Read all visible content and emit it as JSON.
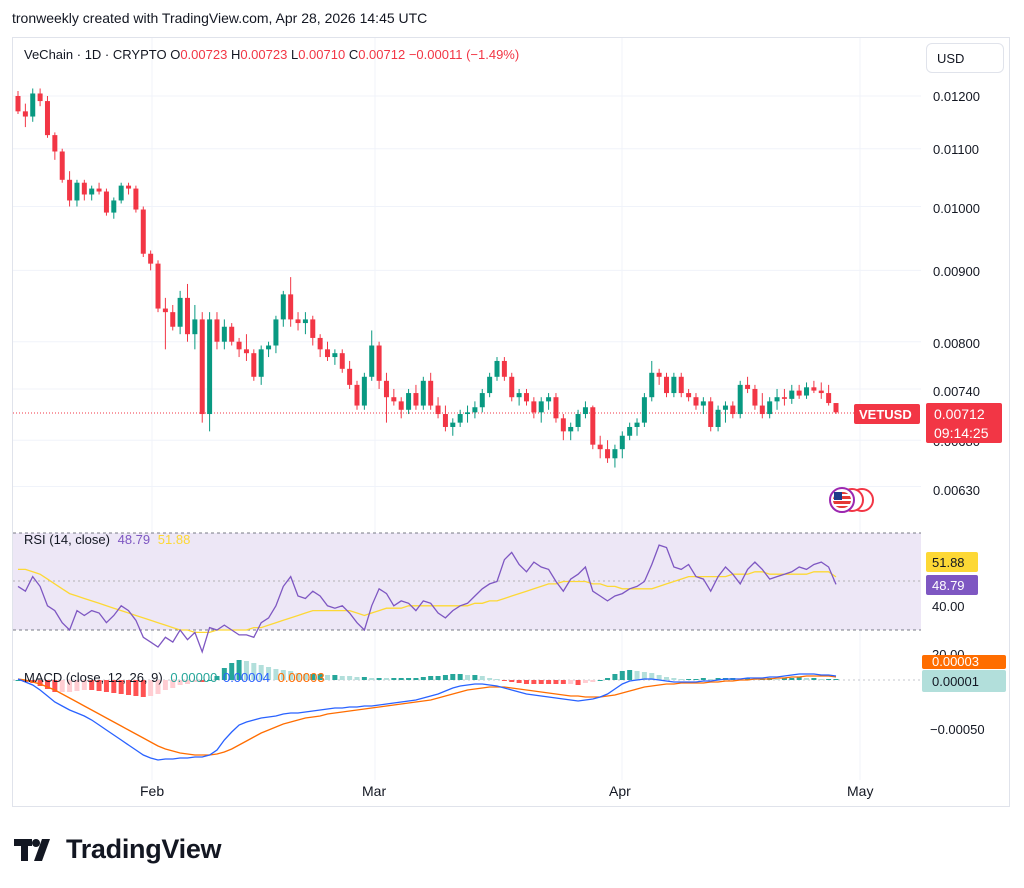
{
  "header": {
    "credit": "tronweekly created with TradingView.com, Apr 28, 2026 14:45 UTC"
  },
  "symbol": {
    "name": "VeChain · 1D · CRYPTO",
    "o_label": "O",
    "o": "0.00723",
    "h_label": "H",
    "h": "0.00723",
    "l_label": "L",
    "l": "0.00710",
    "c_label": "C",
    "c": "0.00712",
    "change": "−0.00011 (−1.49%)"
  },
  "currency_button": "USD",
  "price_axis": {
    "ticks": [
      "0.01200",
      "0.01100",
      "0.01000",
      "0.00900",
      "0.00800",
      "0.00740",
      "0.00630"
    ],
    "ticker_tag": "VETUSD",
    "last_price": "0.00712",
    "countdown": "09:14:25",
    "hidden_tick": "0.00680"
  },
  "rsi": {
    "label": "RSI (14, close)",
    "value": "48.79",
    "ma_value": "51.88",
    "axis_ticks": [
      "40.00",
      "20.00"
    ]
  },
  "macd": {
    "label": "MACD (close, 12, 26, 9)",
    "hist_value": "0.00000",
    "macd_value": "0.00004",
    "signal_value": "0.00003",
    "axis_badge_signal": "0.00003",
    "axis_badge_value": "0.00001",
    "axis_ticks": [
      "−0.00050"
    ]
  },
  "time_axis": {
    "labels": [
      "Feb",
      "Mar",
      "Apr",
      "May"
    ]
  },
  "logo": {
    "text": "TradingView"
  },
  "colors": {
    "up": "#089981",
    "down": "#f23645",
    "rsi": "#7e57c2",
    "rsi_ma": "#fdd835",
    "macd": "#2962ff",
    "signal": "#ff6d00",
    "rsi_band": "#ede7f6"
  },
  "chart_data": {
    "type": "candlestick",
    "title": "VeChain · 1D · CRYPTO",
    "x_dates": [
      "2026-01-03",
      "2026-04-28"
    ],
    "ylim": [
      0.006,
      0.0122
    ],
    "y_scale": "log",
    "grid": true,
    "candles": [
      [
        0.012,
        0.0121,
        0.01165,
        0.0117
      ],
      [
        0.0117,
        0.01185,
        0.0114,
        0.0116
      ],
      [
        0.0116,
        0.01215,
        0.0115,
        0.01205
      ],
      [
        0.01205,
        0.01215,
        0.0118,
        0.0119
      ],
      [
        0.0119,
        0.012,
        0.0112,
        0.01125
      ],
      [
        0.01125,
        0.0113,
        0.0108,
        0.01095
      ],
      [
        0.01095,
        0.011,
        0.0104,
        0.01045
      ],
      [
        0.01045,
        0.0106,
        0.01,
        0.0101
      ],
      [
        0.0101,
        0.01045,
        0.01,
        0.0104
      ],
      [
        0.0104,
        0.01045,
        0.0101,
        0.0102
      ],
      [
        0.0102,
        0.01035,
        0.0101,
        0.0103
      ],
      [
        0.0103,
        0.0104,
        0.0102,
        0.01025
      ],
      [
        0.01025,
        0.0103,
        0.00985,
        0.0099
      ],
      [
        0.0099,
        0.01015,
        0.0098,
        0.0101
      ],
      [
        0.0101,
        0.0104,
        0.01005,
        0.01035
      ],
      [
        0.01035,
        0.0104,
        0.0102,
        0.0103
      ],
      [
        0.0103,
        0.01035,
        0.0099,
        0.00995
      ],
      [
        0.00995,
        0.01,
        0.0092,
        0.00925
      ],
      [
        0.00925,
        0.0093,
        0.009,
        0.0091
      ],
      [
        0.0091,
        0.00915,
        0.0084,
        0.00845
      ],
      [
        0.00845,
        0.0086,
        0.0079,
        0.0084
      ],
      [
        0.0084,
        0.0085,
        0.00815,
        0.0082
      ],
      [
        0.0082,
        0.0087,
        0.0081,
        0.0086
      ],
      [
        0.0086,
        0.0088,
        0.008,
        0.0081
      ],
      [
        0.0081,
        0.0085,
        0.0079,
        0.0083
      ],
      [
        0.0083,
        0.0084,
        0.007,
        0.0071
      ],
      [
        0.0071,
        0.0084,
        0.0069,
        0.0083
      ],
      [
        0.0083,
        0.0084,
        0.0079,
        0.008
      ],
      [
        0.008,
        0.0083,
        0.0079,
        0.0082
      ],
      [
        0.0082,
        0.00825,
        0.00795,
        0.008
      ],
      [
        0.008,
        0.00805,
        0.0078,
        0.0079
      ],
      [
        0.0079,
        0.0081,
        0.00775,
        0.00785
      ],
      [
        0.00785,
        0.0079,
        0.0075,
        0.00755
      ],
      [
        0.00755,
        0.00795,
        0.00745,
        0.0079
      ],
      [
        0.0079,
        0.008,
        0.0078,
        0.00795
      ],
      [
        0.00795,
        0.00835,
        0.00785,
        0.0083
      ],
      [
        0.0083,
        0.0087,
        0.0082,
        0.00865
      ],
      [
        0.00865,
        0.0089,
        0.0082,
        0.0083
      ],
      [
        0.0083,
        0.0084,
        0.00815,
        0.00825
      ],
      [
        0.00825,
        0.0084,
        0.0081,
        0.0083
      ],
      [
        0.0083,
        0.00835,
        0.00795,
        0.00805
      ],
      [
        0.00805,
        0.0081,
        0.0078,
        0.0079
      ],
      [
        0.0079,
        0.008,
        0.00775,
        0.0078
      ],
      [
        0.0078,
        0.0079,
        0.0077,
        0.00785
      ],
      [
        0.00785,
        0.0079,
        0.0076,
        0.00765
      ],
      [
        0.00765,
        0.00775,
        0.0074,
        0.00745
      ],
      [
        0.00745,
        0.0075,
        0.00715,
        0.0072
      ],
      [
        0.0072,
        0.0076,
        0.00715,
        0.00755
      ],
      [
        0.00755,
        0.00815,
        0.0075,
        0.00795
      ],
      [
        0.00795,
        0.008,
        0.0074,
        0.0075
      ],
      [
        0.0075,
        0.0076,
        0.007,
        0.0073
      ],
      [
        0.0073,
        0.0074,
        0.0072,
        0.00725
      ],
      [
        0.00725,
        0.0073,
        0.00705,
        0.00715
      ],
      [
        0.00715,
        0.0074,
        0.0071,
        0.00735
      ],
      [
        0.00735,
        0.00745,
        0.00715,
        0.0072
      ],
      [
        0.0072,
        0.00755,
        0.00715,
        0.0075
      ],
      [
        0.0075,
        0.0076,
        0.00715,
        0.0072
      ],
      [
        0.0072,
        0.0073,
        0.00705,
        0.0071
      ],
      [
        0.0071,
        0.0072,
        0.0069,
        0.00695
      ],
      [
        0.00695,
        0.00705,
        0.00685,
        0.007
      ],
      [
        0.007,
        0.00715,
        0.00695,
        0.0071
      ],
      [
        0.0071,
        0.0072,
        0.007,
        0.00712
      ],
      [
        0.00712,
        0.00725,
        0.00705,
        0.00718
      ],
      [
        0.00718,
        0.0074,
        0.00712,
        0.00735
      ],
      [
        0.00735,
        0.0076,
        0.0073,
        0.00755
      ],
      [
        0.00755,
        0.0078,
        0.0075,
        0.00775
      ],
      [
        0.00775,
        0.0078,
        0.0075,
        0.00755
      ],
      [
        0.00755,
        0.0076,
        0.00725,
        0.0073
      ],
      [
        0.0073,
        0.0074,
        0.0072,
        0.00735
      ],
      [
        0.00735,
        0.0074,
        0.0072,
        0.00725
      ],
      [
        0.00725,
        0.0073,
        0.00705,
        0.00712
      ],
      [
        0.00712,
        0.0073,
        0.007,
        0.00725
      ],
      [
        0.00725,
        0.00735,
        0.00715,
        0.0073
      ],
      [
        0.0073,
        0.00735,
        0.007,
        0.00705
      ],
      [
        0.00705,
        0.0071,
        0.0068,
        0.0069
      ],
      [
        0.0069,
        0.007,
        0.0068,
        0.00695
      ],
      [
        0.00695,
        0.00715,
        0.0069,
        0.0071
      ],
      [
        0.0071,
        0.00725,
        0.00705,
        0.00718
      ],
      [
        0.00718,
        0.0072,
        0.0067,
        0.00675
      ],
      [
        0.00675,
        0.00685,
        0.0066,
        0.0067
      ],
      [
        0.0067,
        0.0068,
        0.00655,
        0.0066
      ],
      [
        0.0066,
        0.00675,
        0.0065,
        0.0067
      ],
      [
        0.0067,
        0.0069,
        0.0066,
        0.00685
      ],
      [
        0.00685,
        0.007,
        0.0068,
        0.00695
      ],
      [
        0.00695,
        0.00705,
        0.00685,
        0.007
      ],
      [
        0.007,
        0.00735,
        0.00695,
        0.0073
      ],
      [
        0.0073,
        0.00775,
        0.00725,
        0.0076
      ],
      [
        0.0076,
        0.00765,
        0.00745,
        0.00755
      ],
      [
        0.00755,
        0.0076,
        0.0073,
        0.00735
      ],
      [
        0.00735,
        0.0076,
        0.0073,
        0.00755
      ],
      [
        0.00755,
        0.0076,
        0.0073,
        0.00735
      ],
      [
        0.00735,
        0.0074,
        0.00725,
        0.0073
      ],
      [
        0.0073,
        0.00735,
        0.00715,
        0.0072
      ],
      [
        0.0072,
        0.0073,
        0.0071,
        0.00725
      ],
      [
        0.00725,
        0.0073,
        0.0069,
        0.00695
      ],
      [
        0.00695,
        0.0072,
        0.0069,
        0.00715
      ],
      [
        0.00715,
        0.00725,
        0.007,
        0.0072
      ],
      [
        0.0072,
        0.00725,
        0.00705,
        0.0071
      ],
      [
        0.0071,
        0.0075,
        0.00705,
        0.00745
      ],
      [
        0.00745,
        0.00755,
        0.00735,
        0.0074
      ],
      [
        0.0074,
        0.00745,
        0.00715,
        0.0072
      ],
      [
        0.0072,
        0.00735,
        0.00705,
        0.0071
      ],
      [
        0.0071,
        0.0073,
        0.00705,
        0.00725
      ],
      [
        0.00725,
        0.0074,
        0.00715,
        0.0073
      ],
      [
        0.0073,
        0.0074,
        0.0072,
        0.00728
      ],
      [
        0.00728,
        0.00745,
        0.00722,
        0.00738
      ],
      [
        0.00738,
        0.00745,
        0.00728,
        0.00732
      ],
      [
        0.00732,
        0.00748,
        0.00728,
        0.00742
      ],
      [
        0.00742,
        0.0075,
        0.00735,
        0.00738
      ],
      [
        0.00738,
        0.00748,
        0.00728,
        0.00735
      ],
      [
        0.00735,
        0.00745,
        0.0072,
        0.00723
      ],
      [
        0.00723,
        0.00723,
        0.0071,
        0.00712
      ]
    ],
    "rsi": [
      48,
      46,
      52,
      48,
      40,
      38,
      33,
      30,
      38,
      36,
      38,
      37,
      33,
      36,
      40,
      38,
      34,
      27,
      25,
      23,
      27,
      25,
      30,
      26,
      29,
      21,
      31,
      30,
      32,
      30,
      28,
      28,
      27,
      33,
      35,
      40,
      48,
      52,
      44,
      43,
      46,
      44,
      40,
      39,
      40,
      37,
      33,
      30,
      40,
      47,
      45,
      40,
      42,
      41,
      38,
      42,
      41,
      37,
      35,
      38,
      40,
      41,
      44,
      47,
      49,
      50,
      59,
      62,
      57,
      54,
      58,
      56,
      55,
      50,
      46,
      51,
      53,
      56,
      46,
      44,
      42,
      44,
      45,
      47,
      48,
      50,
      57,
      65,
      64,
      56,
      55,
      57,
      52,
      51,
      46,
      52,
      56,
      53,
      49,
      55,
      58,
      55,
      51,
      52,
      53,
      54,
      56,
      55,
      57,
      58,
      56,
      48.79
    ],
    "rsi_ma": [
      55,
      55,
      54,
      53,
      51,
      49,
      47,
      45,
      44,
      43,
      42,
      41,
      40,
      39,
      38,
      37,
      36,
      35,
      34,
      33,
      32,
      31,
      30,
      30,
      29,
      29,
      29,
      30,
      30,
      30,
      30,
      30,
      31,
      31,
      32,
      33,
      34,
      35,
      36,
      37,
      38,
      38,
      38,
      38,
      38,
      38,
      37,
      36,
      37,
      38,
      39,
      39,
      39,
      40,
      40,
      40,
      40,
      40,
      40,
      40,
      40,
      40,
      41,
      41,
      42,
      42,
      43,
      44,
      45,
      46,
      47,
      48,
      49,
      49,
      50,
      50,
      50,
      50,
      49,
      49,
      48,
      48,
      47,
      47,
      47,
      47,
      47,
      48,
      49,
      50,
      51,
      52,
      52,
      52,
      52,
      52,
      52,
      53,
      53,
      53,
      54,
      54,
      53,
      53,
      53,
      53,
      53,
      53,
      54,
      54,
      54,
      51.88
    ],
    "macd": [
      1e-05,
      -2e-05,
      -5e-05,
      -0.0001,
      -0.00016,
      -0.00022,
      -0.00026,
      -0.0003,
      -0.00033,
      -0.00036,
      -0.0004,
      -0.00045,
      -0.0005,
      -0.00055,
      -0.0006,
      -0.00065,
      -0.0007,
      -0.00075,
      -0.00078,
      -0.0008,
      -0.00079,
      -0.00079,
      -0.00078,
      -0.00078,
      -0.00077,
      -0.00077,
      -0.00075,
      -0.0007,
      -0.0006,
      -0.00052,
      -0.00045,
      -0.00042,
      -0.0004,
      -0.00038,
      -0.00037,
      -0.00036,
      -0.00034,
      -0.00033,
      -0.00033,
      -0.00032,
      -0.00031,
      -0.0003,
      -0.00029,
      -0.00028,
      -0.00028,
      -0.00027,
      -0.00027,
      -0.00026,
      -0.00026,
      -0.00025,
      -0.00024,
      -0.00023,
      -0.00022,
      -0.00021,
      -0.0002,
      -0.00018,
      -0.00016,
      -0.00014,
      -0.00011,
      -8e-05,
      -6e-05,
      -5e-05,
      -4e-05,
      -4e-05,
      -5e-05,
      -6e-05,
      -8e-05,
      -0.0001,
      -0.00012,
      -0.00014,
      -0.00015,
      -0.00016,
      -0.00017,
      -0.00018,
      -0.00019,
      -0.0002,
      -0.00021,
      -0.0002,
      -0.00019,
      -0.00017,
      -0.00014,
      -9e-05,
      -4e-05,
      -1e-05,
      0.0,
      1e-05,
      1e-05,
      0.0,
      -1e-05,
      -2e-05,
      -2e-05,
      -2e-05,
      -2e-05,
      -1e-05,
      -1e-05,
      0.0,
      1e-05,
      1e-05,
      1e-05,
      2e-05,
      2e-05,
      2e-05,
      3e-05,
      3e-05,
      4e-05,
      5e-05,
      6e-05,
      6e-05,
      6e-05,
      5e-05,
      5e-05,
      4e-05
    ],
    "signal": [
      1e-05,
      0.0,
      -2e-05,
      -4e-05,
      -7e-05,
      -0.0001,
      -0.00014,
      -0.00018,
      -0.00022,
      -0.00026,
      -0.0003,
      -0.00034,
      -0.00038,
      -0.00042,
      -0.00046,
      -0.0005,
      -0.00054,
      -0.00058,
      -0.00062,
      -0.00066,
      -0.00069,
      -0.00071,
      -0.00073,
      -0.00074,
      -0.00075,
      -0.00075,
      -0.00075,
      -0.00074,
      -0.00072,
      -0.00069,
      -0.00065,
      -0.00061,
      -0.00057,
      -0.00053,
      -0.0005,
      -0.00047,
      -0.00044,
      -0.00042,
      -0.0004,
      -0.00038,
      -0.00037,
      -0.00036,
      -0.00034,
      -0.00033,
      -0.00032,
      -0.00031,
      -0.0003,
      -0.00029,
      -0.00028,
      -0.00027,
      -0.00026,
      -0.00025,
      -0.00024,
      -0.00023,
      -0.00022,
      -0.00021,
      -0.0002,
      -0.00018,
      -0.00016,
      -0.00014,
      -0.00012,
      -0.0001,
      -9e-05,
      -8e-05,
      -7e-05,
      -7e-05,
      -7e-05,
      -8e-05,
      -9e-05,
      -0.0001,
      -0.00011,
      -0.00012,
      -0.00013,
      -0.00014,
      -0.00015,
      -0.00016,
      -0.00016,
      -0.00017,
      -0.00017,
      -0.00017,
      -0.00016,
      -0.00015,
      -0.00013,
      -0.00011,
      -9e-05,
      -7e-05,
      -6e-05,
      -5e-05,
      -4e-05,
      -4e-05,
      -3e-05,
      -3e-05,
      -3e-05,
      -3e-05,
      -2e-05,
      -2e-05,
      -1e-05,
      -1e-05,
      0.0,
      0.0,
      1e-05,
      1e-05,
      1e-05,
      2e-05,
      2e-05,
      3e-05,
      3e-05,
      4e-05,
      4e-05,
      4e-05,
      4e-05,
      3e-05
    ]
  }
}
